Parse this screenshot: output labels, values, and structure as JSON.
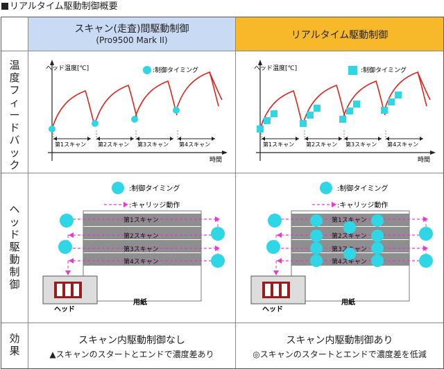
{
  "page_title": "■リアルタイム駆動制御概要",
  "columns": {
    "left": {
      "title": "スキャン(走査)間駆動制御",
      "subtitle": "(Pro9500 Mark II)"
    },
    "right": {
      "title": "リアルタイム駆動制御"
    }
  },
  "rows": {
    "feedback_label": [
      "温",
      "度",
      "フ",
      "ィ",
      "ー",
      "ド",
      "バ",
      "ッ",
      "ク"
    ],
    "head_drive_label": [
      "ヘ",
      "ッ",
      "ド",
      "駆",
      "動",
      "制",
      "御"
    ],
    "effect_label": [
      "効",
      "果"
    ]
  },
  "chart": {
    "ylabel": "ヘッド温度[℃]",
    "xlabel": "時間",
    "legend_timing": ":制御タイミング",
    "scans": [
      "第1スキャン",
      "第2スキャン",
      "第3スキャン",
      "第4スキャン"
    ]
  },
  "drive": {
    "legend_timing": ":制御タイミング",
    "legend_carriage": ":キャリッジ動作",
    "scans": [
      "第1スキャン",
      "第2スキャン",
      "第3スキャン",
      "第4スキャン"
    ],
    "head_label": "ヘッド",
    "paper_label": "用紙"
  },
  "effects": {
    "left": {
      "main": "スキャン内駆動制御なし",
      "sub": "▲スキャンのスタートとエンドで濃度差あり"
    },
    "right": {
      "main": "スキャン内駆動制御あり",
      "sub": "◎スキャンのスタートとエンドで濃度差を低減"
    }
  },
  "colors": {
    "curve": "#e0221c",
    "marker": "#2ed6e6",
    "carriage": "#e63ad6",
    "header_left": "#c9daf4",
    "header_right": "#f7b92a"
  }
}
